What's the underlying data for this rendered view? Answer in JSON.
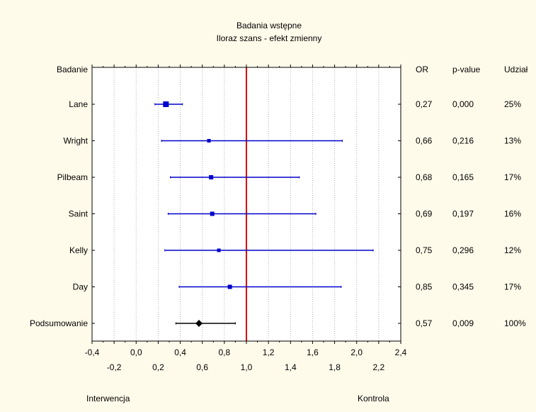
{
  "chart_data": {
    "type": "forest",
    "title": "Badania wstępne",
    "subtitle": "Iloraz szans - efekt zmienny",
    "header": {
      "study": "Badanie",
      "or": "OR",
      "p": "p-value",
      "weight": "Udział"
    },
    "xlim": [
      -0.4,
      2.4
    ],
    "ticks_upper": [
      "-0,4",
      "0,0",
      "0,4",
      "0,8",
      "1,2",
      "1,6",
      "2,0",
      "2,4"
    ],
    "ticks_upper_values": [
      -0.4,
      0.0,
      0.4,
      0.8,
      1.2,
      1.6,
      2.0,
      2.4
    ],
    "ticks_lower": [
      "-0,2",
      "0,2",
      "0,6",
      "1,0",
      "1,4",
      "1,8",
      "2,2"
    ],
    "ticks_lower_values": [
      -0.2,
      0.2,
      0.6,
      1.0,
      1.4,
      1.8,
      2.2
    ],
    "grid_values": [
      -0.2,
      0.0,
      0.2,
      0.4,
      0.6,
      0.8,
      1.2,
      1.4,
      1.6,
      1.8,
      2.0,
      2.2
    ],
    "reference_line": 1.0,
    "xlabel_left": "Interwencja",
    "xlabel_right": "Kontrola",
    "studies": [
      {
        "name": "Lane",
        "or": 0.27,
        "lo": 0.17,
        "hi": 0.42,
        "or_text": "0,27",
        "p": "0,000",
        "weight": "25%",
        "marker": "square",
        "size": 8
      },
      {
        "name": "Wright",
        "or": 0.66,
        "lo": 0.23,
        "hi": 1.87,
        "or_text": "0,66",
        "p": "0,216",
        "weight": "13%",
        "marker": "square",
        "size": 5
      },
      {
        "name": "Pilbeam",
        "or": 0.68,
        "lo": 0.31,
        "hi": 1.48,
        "or_text": "0,68",
        "p": "0,165",
        "weight": "17%",
        "marker": "square",
        "size": 6
      },
      {
        "name": "Saint",
        "or": 0.69,
        "lo": 0.29,
        "hi": 1.63,
        "or_text": "0,69",
        "p": "0,197",
        "weight": "16%",
        "marker": "square",
        "size": 6
      },
      {
        "name": "Kelly",
        "or": 0.75,
        "lo": 0.26,
        "hi": 2.15,
        "or_text": "0,75",
        "p": "0,296",
        "weight": "12%",
        "marker": "square",
        "size": 5
      },
      {
        "name": "Day",
        "or": 0.85,
        "lo": 0.39,
        "hi": 1.86,
        "or_text": "0,85",
        "p": "0,345",
        "weight": "17%",
        "marker": "square",
        "size": 6
      },
      {
        "name": "Podsumowanie",
        "or": 0.57,
        "lo": 0.36,
        "hi": 0.9,
        "or_text": "0,57",
        "p": "0,009",
        "weight": "100%",
        "marker": "diamond",
        "size": 5
      }
    ],
    "colors": {
      "study": "#0000cc",
      "summary": "#000000",
      "reference": "#dd0000",
      "grid": "#b0b0b0",
      "background": "#fffbea",
      "plot_bg": "#ffffff"
    }
  }
}
